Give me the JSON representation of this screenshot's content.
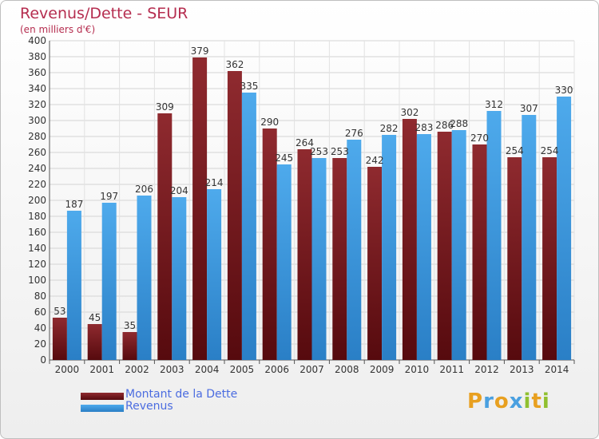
{
  "title": "Revenus/Dette - SEUR",
  "subtitle": "(en milliers d'€)",
  "logo": {
    "letters": [
      "P",
      "r",
      "o",
      "x",
      "i",
      "t",
      "i"
    ],
    "colors": [
      "#e8a020",
      "#4aa0e0",
      "#e8a020",
      "#4aa0e0",
      "#90c030",
      "#e8a020",
      "#90c030"
    ]
  },
  "chart_data": {
    "type": "bar",
    "title": "Revenus/Dette - SEUR",
    "subtitle": "(en milliers d'€)",
    "categories": [
      "2000",
      "2001",
      "2002",
      "2003",
      "2004",
      "2005",
      "2006",
      "2007",
      "2008",
      "2009",
      "2010",
      "2011",
      "2012",
      "2013",
      "2014"
    ],
    "series": [
      {
        "name": "Montant de la Dette",
        "color": "#7a1a1f",
        "values": [
          53,
          45,
          35,
          309,
          379,
          362,
          290,
          264,
          253,
          242,
          302,
          286,
          270,
          254,
          254
        ]
      },
      {
        "name": "Revenus",
        "color": "#3f9ee0",
        "values": [
          187,
          197,
          206,
          204,
          214,
          335,
          245,
          253,
          276,
          282,
          283,
          288,
          312,
          307,
          330
        ]
      }
    ],
    "yticks": [
      0,
      20,
      40,
      60,
      80,
      100,
      120,
      140,
      160,
      180,
      200,
      220,
      240,
      260,
      280,
      300,
      320,
      340,
      360,
      380,
      400
    ],
    "ylim": [
      0,
      400
    ],
    "grid": true,
    "legend_position": "bottom-left"
  }
}
